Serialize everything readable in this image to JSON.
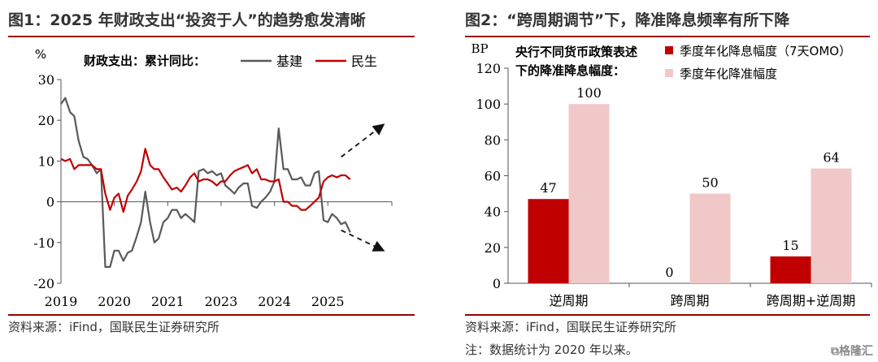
{
  "left": {
    "title": "图1：2025 年财政支出“投资于人”的趋势愈发清晰",
    "source": "资料来源：iFind，国联民生证券研究所",
    "chart_data": {
      "type": "line",
      "ylabel": "%",
      "legend_title": "财政支出：累计同比：",
      "ylim": [
        -20,
        30
      ],
      "yticks": [
        -20,
        -10,
        0,
        10,
        20,
        30
      ],
      "xlim": [
        2019,
        2025.2
      ],
      "xticks": [
        {
          "label": "2019",
          "value": 2019
        },
        {
          "label": "2020",
          "value": 2020
        },
        {
          "label": "2021",
          "value": 2021
        },
        {
          "label": "2023",
          "value": 2022
        },
        {
          "label": "2024",
          "value": 2023
        },
        {
          "label": "2025",
          "value": 2024
        },
        {
          "label": "",
          "value": 2025.2
        }
      ],
      "series": [
        {
          "name": "基建",
          "color": "#595959",
          "x": [
            2019.0,
            2019.08,
            2019.17,
            2019.25,
            2019.33,
            2019.42,
            2019.5,
            2019.58,
            2019.67,
            2019.75,
            2019.83,
            2019.92,
            2020.0,
            2020.08,
            2020.17,
            2020.25,
            2020.33,
            2020.42,
            2020.5,
            2020.58,
            2020.67,
            2020.75,
            2020.83,
            2020.92,
            2021.0,
            2021.08,
            2021.17,
            2021.25,
            2021.33,
            2021.42,
            2021.5,
            2021.58,
            2021.67,
            2021.75,
            2021.83,
            2021.92,
            2022.0,
            2022.08,
            2022.17,
            2022.25,
            2022.33,
            2022.42,
            2022.5,
            2022.58,
            2022.67,
            2022.75,
            2022.83,
            2022.92,
            2023.0,
            2023.08,
            2023.17,
            2023.25,
            2023.33,
            2023.42,
            2023.5,
            2023.58,
            2023.67,
            2023.75,
            2023.83,
            2023.92,
            2024.0,
            2024.08,
            2024.17,
            2024.25,
            2024.33,
            2024.42
          ],
          "y": [
            24,
            25.5,
            22,
            21,
            15,
            11,
            10.5,
            9,
            7,
            8,
            -16,
            -16,
            -12,
            -12,
            -14.5,
            -12.5,
            -12,
            -8.5,
            -5,
            2.5,
            -5,
            -10,
            -9,
            -5,
            -4,
            -2,
            -2,
            -4,
            -3,
            -4,
            -5,
            7.5,
            8,
            7,
            7.5,
            6.5,
            7,
            4,
            3,
            2,
            3.5,
            4.5,
            4.5,
            -1,
            -1.5,
            0,
            1,
            2.5,
            5,
            18,
            8,
            8,
            5.5,
            5.5,
            6,
            4,
            4,
            7,
            7.5,
            -4.5,
            -5,
            -3,
            -4,
            -5.5,
            -5,
            -7.5
          ]
        },
        {
          "name": "民生",
          "color": "#c00000",
          "x": [
            2019.0,
            2019.08,
            2019.17,
            2019.25,
            2019.33,
            2019.42,
            2019.5,
            2019.58,
            2019.67,
            2019.75,
            2019.83,
            2019.92,
            2020.0,
            2020.08,
            2020.17,
            2020.25,
            2020.33,
            2020.42,
            2020.5,
            2020.58,
            2020.67,
            2020.75,
            2020.83,
            2020.92,
            2021.0,
            2021.08,
            2021.17,
            2021.25,
            2021.33,
            2021.42,
            2021.5,
            2021.58,
            2021.67,
            2021.75,
            2021.83,
            2021.92,
            2022.0,
            2022.08,
            2022.17,
            2022.25,
            2022.33,
            2022.42,
            2022.5,
            2022.58,
            2022.67,
            2022.75,
            2022.83,
            2022.92,
            2023.0,
            2023.08,
            2023.17,
            2023.25,
            2023.33,
            2023.42,
            2023.5,
            2023.58,
            2023.67,
            2023.75,
            2023.83,
            2023.92,
            2024.0,
            2024.08,
            2024.17,
            2024.25,
            2024.33,
            2024.42
          ],
          "y": [
            10.5,
            10,
            10.5,
            8,
            9,
            9,
            9,
            9,
            8,
            8,
            2,
            -2,
            1,
            2,
            -2.5,
            1.5,
            3,
            5,
            7.5,
            13,
            9,
            8,
            8,
            6,
            4.5,
            3,
            3.5,
            2.5,
            4,
            6,
            7,
            5,
            5.5,
            5.5,
            5,
            4,
            5,
            5,
            6.5,
            7.5,
            8,
            8.5,
            9,
            7,
            8,
            5.5,
            5.5,
            5,
            5,
            5.5,
            0,
            0,
            -1,
            -1,
            -2,
            -2,
            -1,
            0,
            1,
            5,
            6,
            6.5,
            6,
            6.5,
            6.5,
            5.5
          ]
        }
      ],
      "annotations": [
        {
          "type": "arrow",
          "from": [
            2024.25,
            11
          ],
          "to": [
            2025.05,
            19
          ],
          "style": "dashed"
        },
        {
          "type": "arrow",
          "from": [
            2024.25,
            -7
          ],
          "to": [
            2025.05,
            -12
          ],
          "style": "dashed"
        }
      ]
    }
  },
  "right": {
    "title": "图2：“跨周期调节”下，降准降息频率有所下降",
    "source": "资料来源：iFind，国联民生证券研究所",
    "note": "注：数据统计为 2020 年以来。",
    "chart_data": {
      "type": "bar",
      "ylabel": "BP",
      "legend_title": "央行不同货币政策表述下的降准降息幅度：",
      "legend_title_lines": [
        "央行不同货币政策表述",
        "下的降准降息幅度："
      ],
      "ylim": [
        0,
        120
      ],
      "yticks": [
        0,
        20,
        40,
        60,
        80,
        100,
        120
      ],
      "categories": [
        "逆周期",
        "跨周期",
        "跨周期+逆周期"
      ],
      "series": [
        {
          "name": "季度年化降息幅度（7天OMO）",
          "color": "#c00000",
          "values": [
            47,
            0,
            15
          ]
        },
        {
          "name": "季度年化降准幅度",
          "color": "#f0c8c8",
          "values": [
            100,
            50,
            64
          ]
        }
      ]
    }
  },
  "watermark": "格隆汇"
}
